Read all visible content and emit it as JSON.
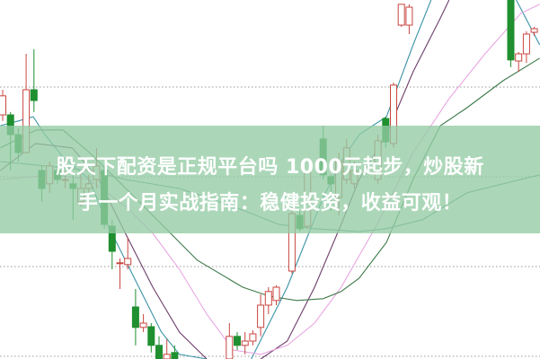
{
  "headline": {
    "line1": "股天下配资是正规平台吗 1000元起步，炒股新",
    "line2": "手一个月实战指南：稳健投资，收益可观！"
  },
  "chart_data": {
    "type": "candlestick",
    "grid": true,
    "gridlines": [
      75.75,
      50.75,
      25.75,
      0.75
    ],
    "xlim": [
      0,
      69
    ],
    "ylim": [
      0,
      100
    ],
    "colors": {
      "up": "#c8453f",
      "down": "#1f8f2f",
      "grid": "#9a9a9a"
    },
    "candles": [
      [
        0,
        68,
        73.3,
        75,
        66.3
      ],
      [
        1,
        68,
        62.5,
        68.8,
        52.5
      ],
      [
        2,
        62.5,
        57.5,
        64.3,
        55
      ],
      [
        3,
        57.5,
        75,
        85,
        57.5
      ],
      [
        4,
        75,
        72,
        86.3,
        68.8
      ],
      [
        5,
        52.5,
        47.5,
        53.8,
        43.8
      ],
      [
        6,
        48.8,
        53.8,
        55,
        46.3
      ],
      [
        7,
        52.5,
        50,
        53.8,
        48.8
      ],
      [
        8,
        50,
        50,
        52.5,
        47.5
      ],
      [
        9,
        48.8,
        47.5,
        51.3,
        38.8
      ],
      [
        10,
        43.8,
        47.5,
        52.5,
        42.5
      ],
      [
        11,
        47.5,
        48.8,
        51.3,
        46.3
      ],
      [
        12,
        50,
        53.8,
        58.8,
        47.5
      ],
      [
        13,
        52.5,
        37.5,
        53.8,
        36.3
      ],
      [
        14,
        37,
        30,
        38.8,
        25
      ],
      [
        15,
        26.8,
        26.8,
        28,
        19.5
      ],
      [
        16,
        26.3,
        28,
        33.8,
        25
      ],
      [
        17,
        14.5,
        8.8,
        19.5,
        3.8
      ],
      [
        18,
        8.8,
        10,
        12.5,
        7.5
      ],
      [
        19,
        9,
        3.8,
        10,
        1.8
      ],
      [
        20,
        3.8,
        0,
        6.3,
        0
      ],
      [
        21,
        0,
        1.3,
        5.5,
        0
      ],
      [
        22,
        1.8,
        0,
        3.8,
        0
      ],
      [
        29,
        0,
        6.3,
        10,
        0
      ],
      [
        30,
        6.3,
        3.8,
        7.5,
        2.5
      ],
      [
        31,
        3.8,
        5,
        7.5,
        1.3
      ],
      [
        32,
        5,
        7,
        8,
        3.8
      ],
      [
        33,
        8.8,
        15,
        18,
        6.3
      ],
      [
        34,
        15,
        18.8,
        20,
        12.5
      ],
      [
        35,
        16.3,
        20,
        20.5,
        15
      ],
      [
        37,
        24.5,
        40.5,
        42,
        23.8
      ],
      [
        38,
        40,
        36.3,
        41.3,
        35.5
      ],
      [
        39,
        37,
        52,
        52,
        36.3
      ],
      [
        41,
        61.3,
        51.3,
        65,
        50
      ],
      [
        42,
        50.8,
        48.8,
        51.3,
        41.3
      ],
      [
        43,
        45,
        55,
        57.5,
        40
      ],
      [
        44,
        50,
        58.8,
        61.3,
        48.8
      ],
      [
        45,
        48.8,
        52.5,
        55,
        47.5
      ],
      [
        48,
        50,
        60.8,
        62.5,
        48.8
      ],
      [
        49,
        67,
        60.5,
        67.5,
        58.8
      ],
      [
        50,
        60,
        76.3,
        77,
        58.8
      ],
      [
        51,
        93,
        98.8,
        98.8,
        92.5
      ],
      [
        52,
        93,
        98,
        98.8,
        90.5
      ],
      [
        65,
        100,
        83.3,
        100,
        81.3
      ],
      [
        66,
        83,
        85,
        85.5,
        80
      ],
      [
        67,
        85,
        90.5,
        91.3,
        82.5
      ],
      [
        68,
        91,
        92,
        92.5,
        90
      ]
    ],
    "moving_averages": [
      {
        "color": "#3b93a6",
        "segments": [
          [
            [
              -0.3,
              65
            ],
            [
              2,
              66.3
            ],
            [
              3.9,
              67.5
            ],
            [
              5.4,
              62.5
            ],
            [
              7.7,
              56.3
            ],
            [
              11.1,
              50
            ],
            [
              13.4,
              37.5
            ],
            [
              15.7,
              27.5
            ],
            [
              18,
              17.5
            ],
            [
              20.3,
              7.5
            ],
            [
              22.6,
              1.3
            ],
            [
              26.1,
              0
            ]
          ],
          [
            [
              31.8,
              0
            ],
            [
              34.1,
              10
            ],
            [
              36.4,
              20
            ],
            [
              38.7,
              32.5
            ],
            [
              41,
              45
            ],
            [
              43.3,
              55
            ],
            [
              45.6,
              62.5
            ],
            [
              49.1,
              67.5
            ],
            [
              52.5,
              87.5
            ],
            [
              54.8,
              100
            ]
          ],
          [
            [
              65.7,
              100
            ],
            [
              68.7,
              87.5
            ]
          ]
        ]
      },
      {
        "color": "#6e3d6a",
        "segments": [
          [
            [
              -0.3,
              52.5
            ],
            [
              4.2,
              60
            ],
            [
              8.9,
              58.8
            ],
            [
              12.3,
              50
            ],
            [
              15.7,
              35
            ],
            [
              19.2,
              20
            ],
            [
              22.6,
              7.5
            ],
            [
              26.1,
              0
            ]
          ],
          [
            [
              33,
              0
            ],
            [
              36.4,
              5
            ],
            [
              39.9,
              20
            ],
            [
              43.3,
              37.5
            ],
            [
              45.6,
              50
            ],
            [
              49.1,
              62.5
            ],
            [
              52.5,
              80
            ],
            [
              56,
              95
            ],
            [
              57.1,
              100
            ]
          ]
        ]
      },
      {
        "color": "#e8a6e2",
        "segments": [
          [
            [
              -0.3,
              50
            ],
            [
              6.6,
              51.3
            ],
            [
              11.1,
              50
            ],
            [
              15.7,
              42.5
            ],
            [
              19.2,
              35
            ],
            [
              22.6,
              25
            ],
            [
              26.1,
              12.5
            ],
            [
              29.5,
              2.5
            ],
            [
              33,
              1.3
            ],
            [
              36.4,
              3.8
            ],
            [
              39.9,
              10
            ],
            [
              43.3,
              20
            ],
            [
              47.9,
              37.5
            ],
            [
              52.5,
              57.5
            ],
            [
              57.1,
              72.5
            ],
            [
              61.7,
              85
            ],
            [
              66.3,
              96.3
            ],
            [
              68.7,
              98.8
            ]
          ]
        ]
      },
      {
        "color": "#3f7a4a",
        "segments": [
          [
            [
              -0.3,
              58.8
            ],
            [
              4.3,
              63.8
            ],
            [
              7.7,
              63.8
            ],
            [
              11.1,
              57.5
            ],
            [
              14.6,
              50
            ],
            [
              19.2,
              40
            ],
            [
              24.9,
              27.5
            ],
            [
              30.7,
              20
            ],
            [
              34.1,
              17.5
            ],
            [
              37.6,
              16.3
            ],
            [
              41,
              16.8
            ],
            [
              43.3,
              18.8
            ],
            [
              45.6,
              22.5
            ],
            [
              49.1,
              32.5
            ],
            [
              52.5,
              50
            ],
            [
              56,
              65
            ],
            [
              59.4,
              70
            ],
            [
              64,
              77.5
            ],
            [
              68.7,
              83.8
            ]
          ]
        ]
      },
      {
        "color": "#5b9184",
        "segments": [
          [
            [
              -0.3,
              55
            ],
            [
              5.4,
              53.8
            ],
            [
              11.1,
              52.5
            ],
            [
              15.7,
              50
            ],
            [
              22.6,
              47.5
            ],
            [
              29.5,
              42.5
            ],
            [
              35.3,
              37.5
            ],
            [
              39.9,
              36.3
            ],
            [
              45.6,
              35.5
            ],
            [
              49.1,
              36.3
            ],
            [
              53.7,
              38.8
            ],
            [
              59.4,
              46.3
            ],
            [
              64,
              48.8
            ],
            [
              68.7,
              51.3
            ]
          ]
        ]
      }
    ]
  }
}
